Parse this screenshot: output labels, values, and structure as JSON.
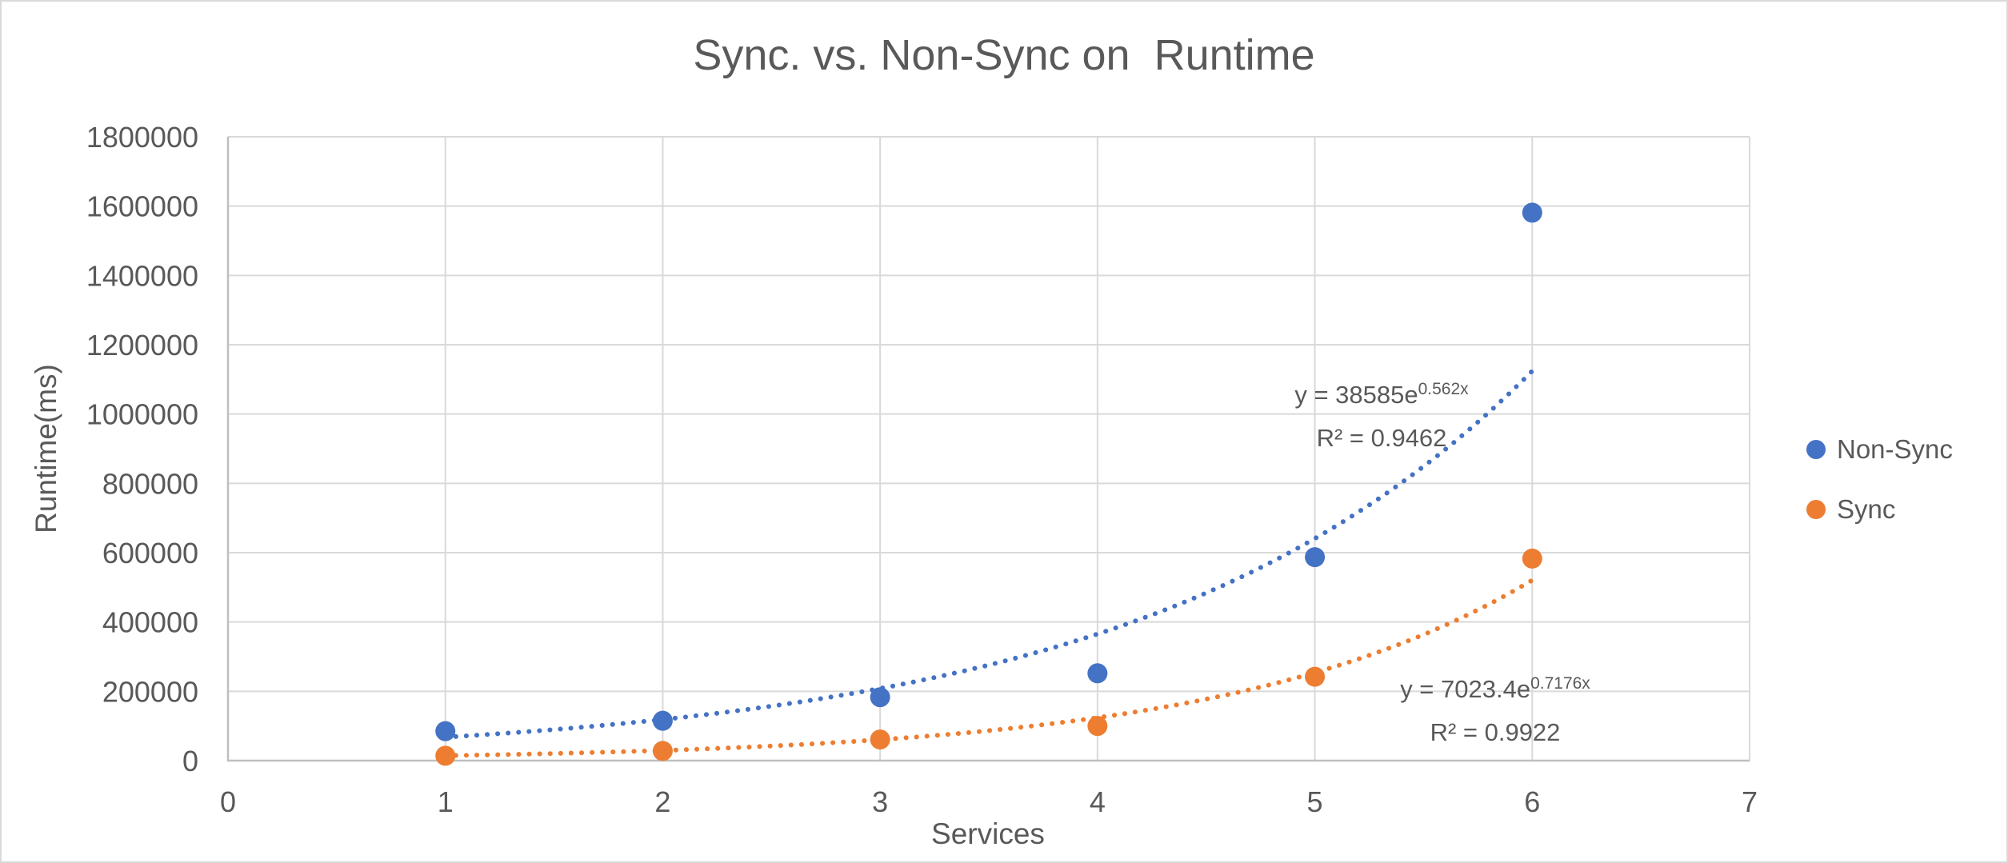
{
  "window": {
    "background": "#ffffff",
    "border_color": "#d9d9d9"
  },
  "chart_data": {
    "type": "scatter",
    "title": "Sync. vs. Non-Sync on  Runtime",
    "xlabel": "Services",
    "ylabel": "Runtime(ms)",
    "xlim": [
      0,
      7
    ],
    "ylim": [
      0,
      1800000
    ],
    "x_tick_labels": [
      "0",
      "1",
      "2",
      "3",
      "4",
      "5",
      "6",
      "7"
    ],
    "y_tick_labels": [
      "0",
      "200000",
      "400000",
      "600000",
      "800000",
      "1000000",
      "1200000",
      "1400000",
      "1600000",
      "1800000"
    ],
    "grid": true,
    "legend_position": "right",
    "x": [
      1,
      2,
      3,
      4,
      5,
      6
    ],
    "series": [
      {
        "name": "Non-Sync",
        "color": "#4472C4",
        "values": [
          85000,
          115000,
          183000,
          252000,
          587000,
          1581000
        ],
        "trendline": {
          "type": "exponential",
          "style": "dotted",
          "a": 38585,
          "b": 0.562,
          "equation_base": "y = 38585e",
          "equation_exponent": "0.562x",
          "r2": "R² = 0.9462"
        }
      },
      {
        "name": "Sync",
        "color": "#ED7D31",
        "values": [
          14000,
          28000,
          61000,
          100000,
          242000,
          583000
        ],
        "trendline": {
          "type": "exponential",
          "style": "dotted",
          "a": 7023.4,
          "b": 0.7176,
          "equation_base": "y = 7023.4e",
          "equation_exponent": "0.7176x",
          "r2": "R² = 0.9922"
        }
      }
    ],
    "colors": {
      "text": "#595959",
      "gridline": "#D9D9D9",
      "axis_line": "#BFBFBF"
    }
  }
}
